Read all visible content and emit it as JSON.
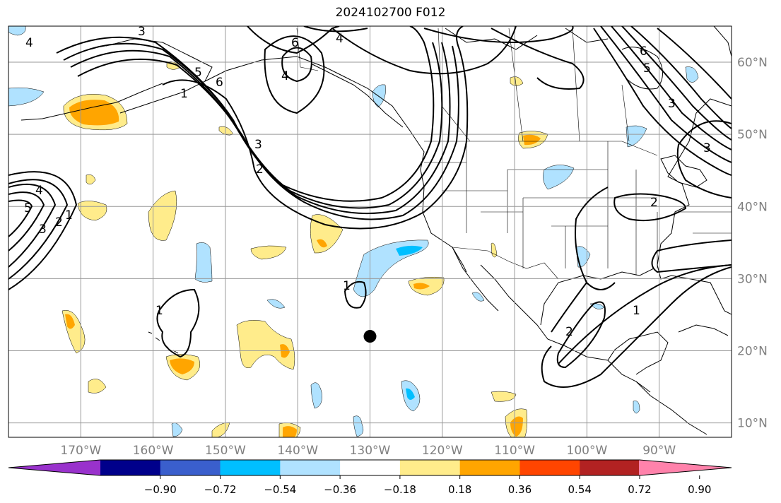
{
  "title": "2024102700 F012",
  "colors": {
    "land_outline": "#000000",
    "grid": "#999999",
    "contour": "#000000",
    "tick_label": "#808080"
  },
  "chart_data": {
    "type": "map",
    "projection": "equirectangular",
    "lon_range": [
      -180,
      -80
    ],
    "lat_range": [
      8,
      65
    ],
    "x_ticks": [
      "170°W",
      "160°W",
      "150°W",
      "140°W",
      "130°W",
      "120°W",
      "110°W",
      "100°W",
      "90°W"
    ],
    "x_tick_values": [
      -170,
      -160,
      -150,
      -140,
      -130,
      -120,
      -110,
      -100,
      -90
    ],
    "y_ticks": [
      "10°N",
      "20°N",
      "30°N",
      "40°N",
      "50°N",
      "60°N"
    ],
    "y_tick_values": [
      10,
      20,
      30,
      40,
      50,
      60
    ],
    "marker": {
      "lon": -130,
      "lat": 22,
      "color": "#000000"
    },
    "contour_labels": [
      "1",
      "2",
      "3",
      "4",
      "5",
      "6"
    ],
    "colorbar": {
      "extend": "both",
      "colors": [
        "#9932cc",
        "#00008b",
        "#3a5fcd",
        "#00bfff",
        "#b0e2ff",
        "#ffffff",
        "#ffec8b",
        "#ffa500",
        "#ff4500",
        "#b22222",
        "#ff82ab"
      ],
      "tick_labels": [
        "−0.90",
        "−0.72",
        "−0.54",
        "−0.36",
        "−0.18",
        "0.18",
        "0.36",
        "0.54",
        "0.72",
        "0.90"
      ]
    }
  }
}
